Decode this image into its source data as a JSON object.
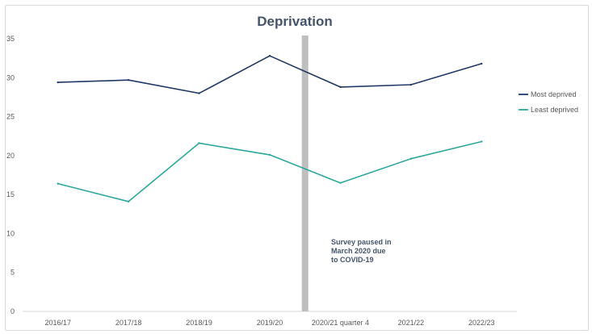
{
  "chart_data": {
    "type": "line",
    "title": "Deprivation",
    "categories": [
      "2016/17",
      "2017/18",
      "2018/19",
      "2019/20",
      "2020/21 quarter 4",
      "2021/22",
      "2022/23"
    ],
    "ylim": [
      0,
      35
    ],
    "yticks": [
      0,
      5,
      10,
      15,
      20,
      25,
      30,
      35
    ],
    "grid": false,
    "legend_position": "right",
    "series": [
      {
        "name": "Most deprived",
        "color": "#203864",
        "values": [
          29.4,
          29.7,
          28.0,
          32.8,
          28.8,
          29.1,
          31.8
        ]
      },
      {
        "name": "Least deprived",
        "color": "#2ea89c",
        "values": [
          16.4,
          14.1,
          21.6,
          20.1,
          16.5,
          19.6,
          21.8
        ]
      }
    ],
    "annotation": {
      "lines": [
        "Survey paused in",
        "March 2020 due",
        "to COVID-19"
      ],
      "color": "#44546a"
    },
    "pause_bar_color": "#bfbfbf"
  }
}
